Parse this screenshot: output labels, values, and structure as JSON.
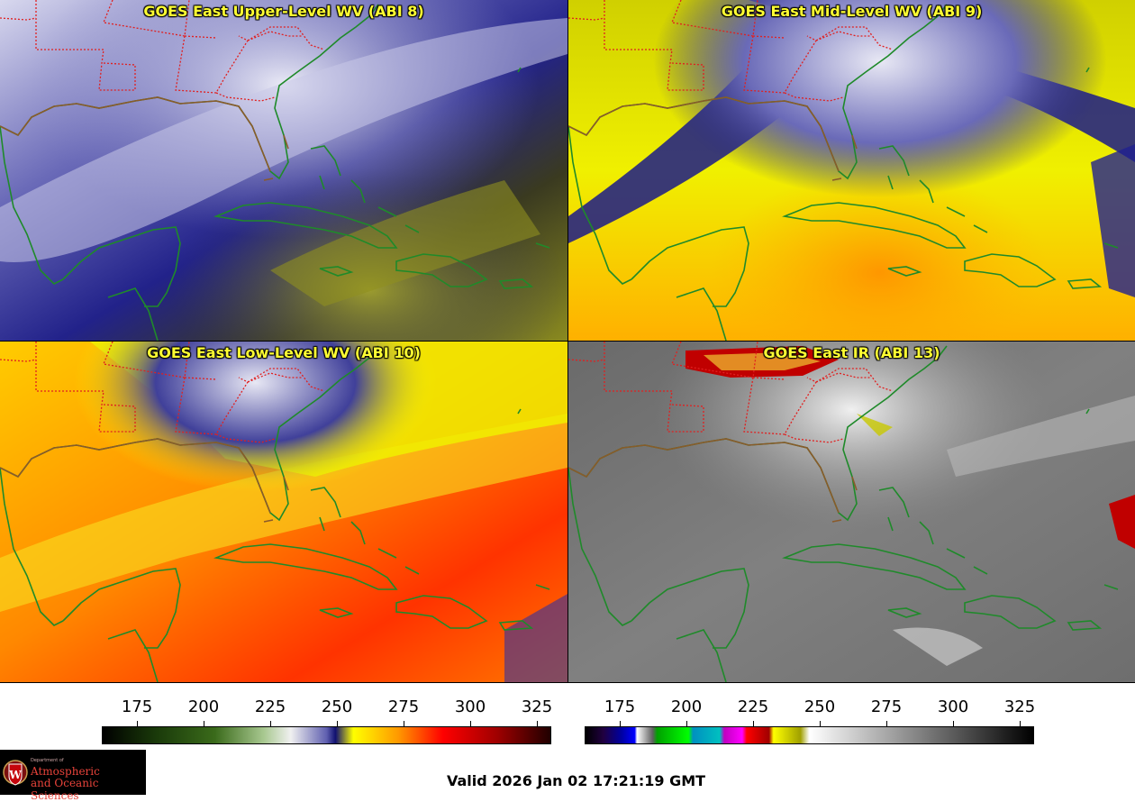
{
  "panels": [
    {
      "id": "p1",
      "title": "GOES East Upper-Level WV (ABI 8)"
    },
    {
      "id": "p2",
      "title": "GOES East Mid-Level WV (ABI 9)"
    },
    {
      "id": "p3",
      "title": "GOES East Low-Level WV (ABI 10)"
    },
    {
      "id": "p4",
      "title": "GOES East IR (ABI 13)"
    }
  ],
  "colorbars": {
    "wv": {
      "ticks": [
        "175",
        "200",
        "225",
        "250",
        "275",
        "300",
        "325"
      ]
    },
    "ir": {
      "ticks": [
        "175",
        "200",
        "225",
        "250",
        "275",
        "300",
        "325"
      ]
    }
  },
  "valid_time": "Valid 2026 Jan 02 17:21:19 GMT",
  "logo": {
    "dept": "Department of",
    "line1": "Atmospheric",
    "line2": "and Oceanic Sciences",
    "letter": "W"
  },
  "colors": {
    "title": "#ffff33",
    "state_lines": "#e02020",
    "coast": "#1a8a1a",
    "logo_text": "#e8433a"
  }
}
